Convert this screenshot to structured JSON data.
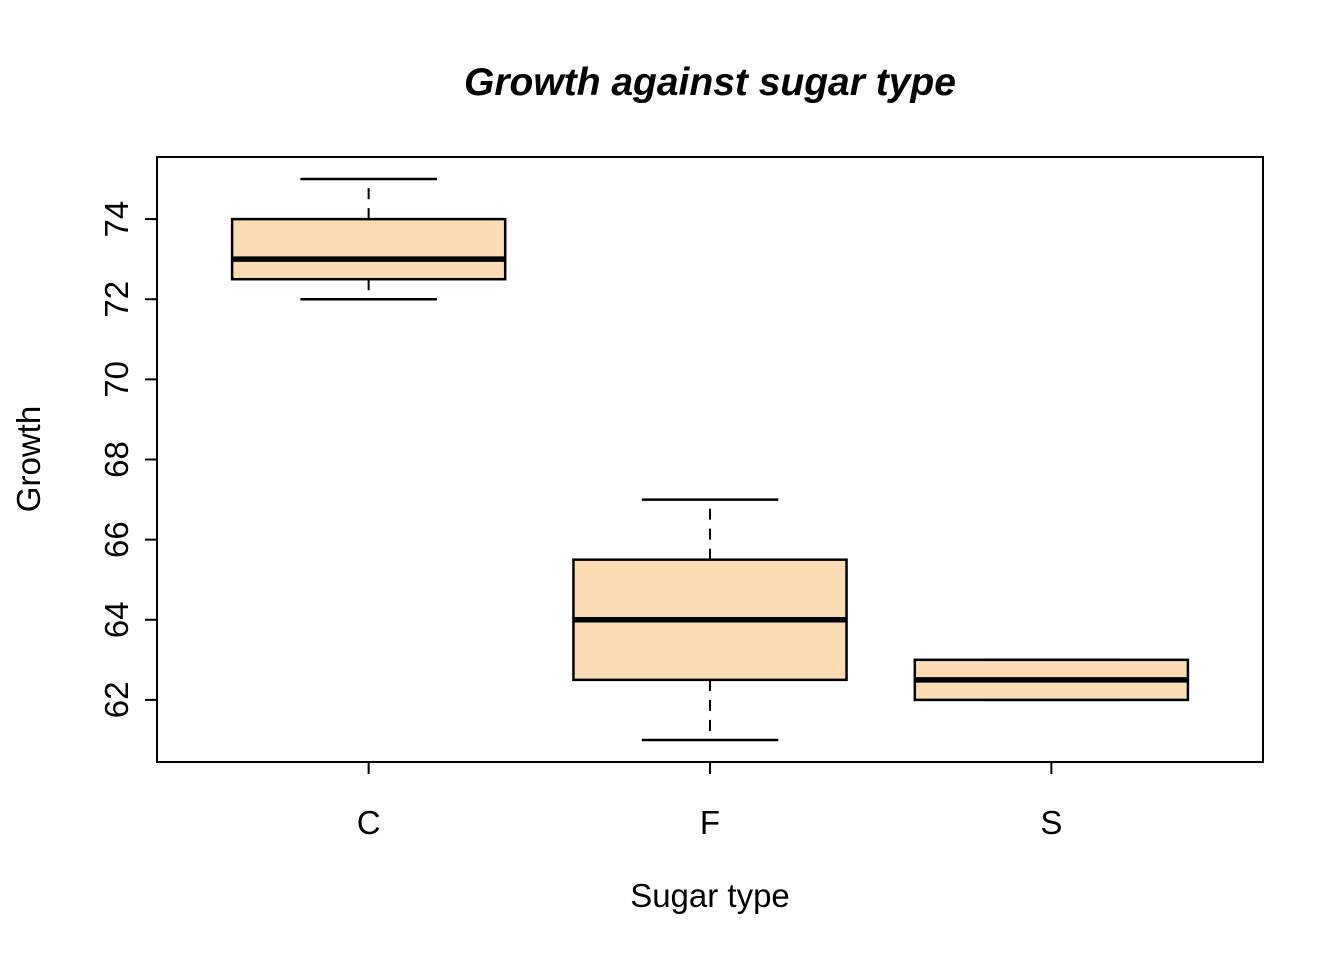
{
  "chart_data": {
    "type": "boxplot",
    "title": "Growth against sugar type",
    "xlabel": "Sugar type",
    "ylabel": "Growth",
    "categories": [
      "C",
      "F",
      "S"
    ],
    "series": [
      {
        "name": "C",
        "whisker_low": 72,
        "q1": 72.5,
        "median": 73,
        "q3": 74,
        "whisker_high": 75
      },
      {
        "name": "F",
        "whisker_low": 61,
        "q1": 62.5,
        "median": 64,
        "q3": 65.5,
        "whisker_high": 67
      },
      {
        "name": "S",
        "whisker_low": 62,
        "q1": 62,
        "median": 62.5,
        "q3": 63,
        "whisker_high": 63
      }
    ],
    "y_ticks": [
      62,
      64,
      66,
      68,
      70,
      72,
      74
    ],
    "ylim": [
      60.45,
      75.55
    ],
    "xlim": [
      0.38,
      3.62
    ],
    "grid": false,
    "colors": {
      "box_fill": "#FCDCB4",
      "line": "#000000",
      "text": "#000000",
      "background": "#FFFFFF"
    }
  }
}
